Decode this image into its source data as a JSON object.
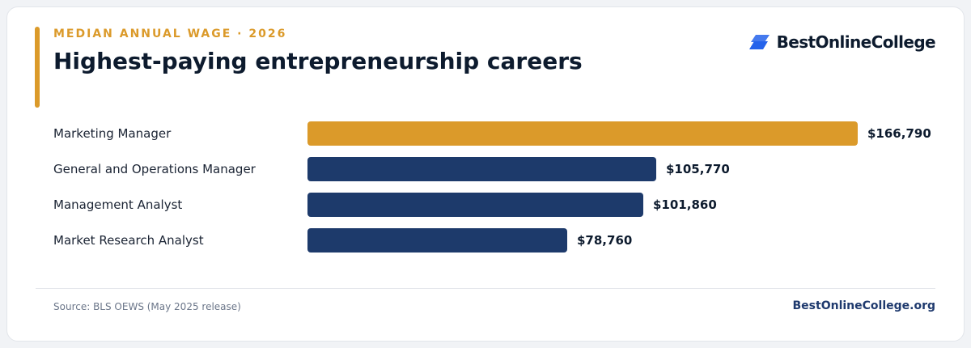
{
  "header": {
    "kicker": "MEDIAN ANNUAL WAGE · 2026",
    "title": "Highest-paying entrepreneurship careers"
  },
  "brand": {
    "logo_text": "BestOnlineCollege",
    "logo_icon": "parallelogram-stack-icon",
    "logo_color": "#2563eb",
    "site": "BestOnlineCollege.org"
  },
  "footer": {
    "source": "Source: BLS OEWS (May 2025 release)"
  },
  "colors": {
    "accent": "#db9a2a",
    "bar": "#1d3a6b"
  },
  "chart_data": {
    "type": "bar",
    "orientation": "horizontal",
    "categories": [
      "Marketing Manager",
      "General and Operations Manager",
      "Management Analyst",
      "Market Research Analyst"
    ],
    "values": [
      166790,
      105770,
      101860,
      78760
    ],
    "value_labels": [
      "$166,790",
      "$105,770",
      "$101,860",
      "$78,760"
    ],
    "highlight_index": 0,
    "xlim": [
      0,
      166790
    ],
    "grid": false,
    "legend": "none"
  }
}
